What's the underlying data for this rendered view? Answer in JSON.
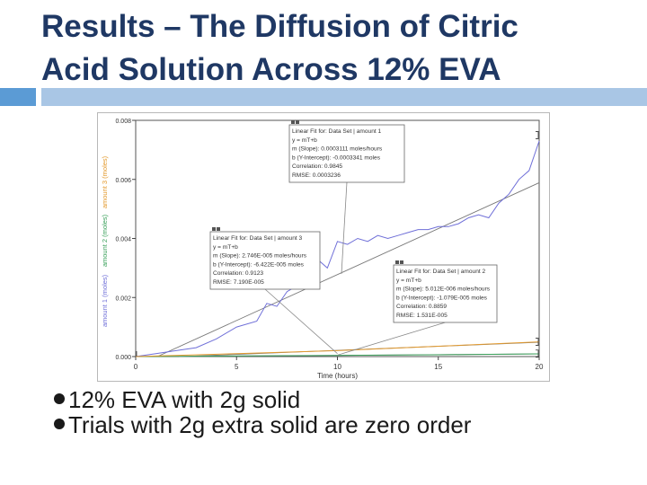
{
  "slide": {
    "title_line1": "Results – The Diffusion of Citric",
    "title_line2": "Acid Solution Across 12% EVA",
    "bullets": [
      "12% EVA with 2g solid",
      "Trials with 2g extra solid are zero order"
    ]
  },
  "colors": {
    "title": "#1f3864",
    "accent_bar": "#5b9bd5",
    "accent_bar_light": "#a9c6e5",
    "series1": "#6f6fd8",
    "series2": "#3aa05a",
    "series3": "#e39a2e",
    "fit_line": "#777777"
  },
  "chart_data": {
    "type": "line",
    "xlabel": "Time (hours)",
    "ylabels": [
      "amount 1 (moles)",
      "amount 2 (moles)",
      "amount 3 (moles)"
    ],
    "xlim": [
      0,
      20
    ],
    "ylim": [
      0,
      0.008
    ],
    "xticks": [
      "0",
      "5",
      "10",
      "15",
      "20"
    ],
    "yticks": [
      "0.000",
      "0.002",
      "0.004",
      "0.006",
      "0.008"
    ],
    "series": [
      {
        "color": "#6f6fd8",
        "x": [
          0,
          1,
          2,
          3,
          4,
          5,
          6,
          6.5,
          7,
          7.5,
          8,
          8.5,
          9,
          9.5,
          10,
          10.5,
          11,
          11.5,
          12,
          12.5,
          13,
          13.5,
          14,
          14.5,
          15,
          15.5,
          16,
          16.5,
          17,
          17.5,
          18,
          18.5,
          19,
          19.5,
          20
        ],
        "y": [
          0,
          0.0001,
          0.0002,
          0.0003,
          0.0006,
          0.001,
          0.0012,
          0.0018,
          0.0017,
          0.0022,
          0.0024,
          0.0028,
          0.0033,
          0.003,
          0.0039,
          0.0038,
          0.004,
          0.0039,
          0.0041,
          0.004,
          0.0041,
          0.0042,
          0.0043,
          0.0043,
          0.0044,
          0.0044,
          0.0045,
          0.0047,
          0.0048,
          0.0047,
          0.0052,
          0.0055,
          0.006,
          0.0063,
          0.0073
        ]
      },
      {
        "color": "#3aa05a",
        "x": [
          0,
          5,
          10,
          15,
          20
        ],
        "y": [
          0,
          2e-05,
          4e-05,
          6e-05,
          9e-05
        ]
      },
      {
        "color": "#e39a2e",
        "x": [
          0,
          5,
          10,
          15,
          20
        ],
        "y": [
          0,
          0.0001,
          0.0002,
          0.00035,
          0.0005
        ]
      }
    ],
    "fits": [
      {
        "name": "amount 1",
        "slope": 0.0003111,
        "intercept": -0.0003341
      },
      {
        "name": "amount 2",
        "slope": 5.012e-06,
        "intercept": -1.079e-05
      },
      {
        "name": "amount 3",
        "slope": 2.746e-05,
        "intercept": -6.422e-05
      }
    ],
    "annotations": [
      {
        "lines": [
          "Linear Fit for: Data Set | amount 1",
          "y = mT+b",
          "m (Slope): 0.0003111 moles/hours",
          "b (Y-Intercept): -0.0003341 moles",
          "Correlation: 0.9845",
          "RMSE: 0.0003236"
        ]
      },
      {
        "lines": [
          "Linear Fit for: Data Set | amount 3",
          "y = mT+b",
          "m (Slope): 2.746E-005 moles/hours",
          "b (Y-Intercept): -6.422E-005 moles",
          "Correlation: 0.9123",
          "RMSE: 7.190E-005"
        ]
      },
      {
        "lines": [
          "Linear Fit for: Data Set | amount 2",
          "y = mT+b",
          "m (Slope): 5.012E-006 moles/hours",
          "b (Y-Intercept): -1.079E-005 moles",
          "Correlation: 0.8859",
          "RMSE: 1.531E-005"
        ]
      }
    ],
    "grid": false
  }
}
